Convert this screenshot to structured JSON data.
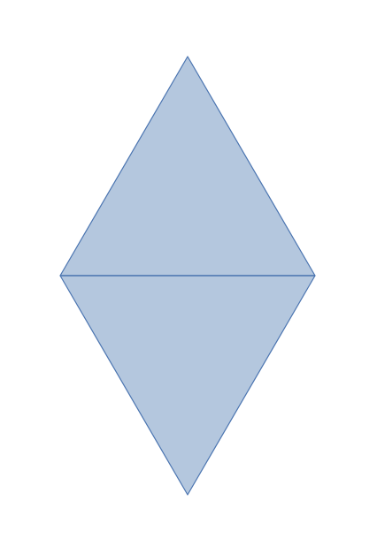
{
  "diagram": {
    "shape": "two triangles sharing a horizontal base (rhombus)",
    "colors": {
      "fill": "#b4c7de",
      "stroke": "#4a74b0",
      "background": "#ffffff"
    }
  }
}
